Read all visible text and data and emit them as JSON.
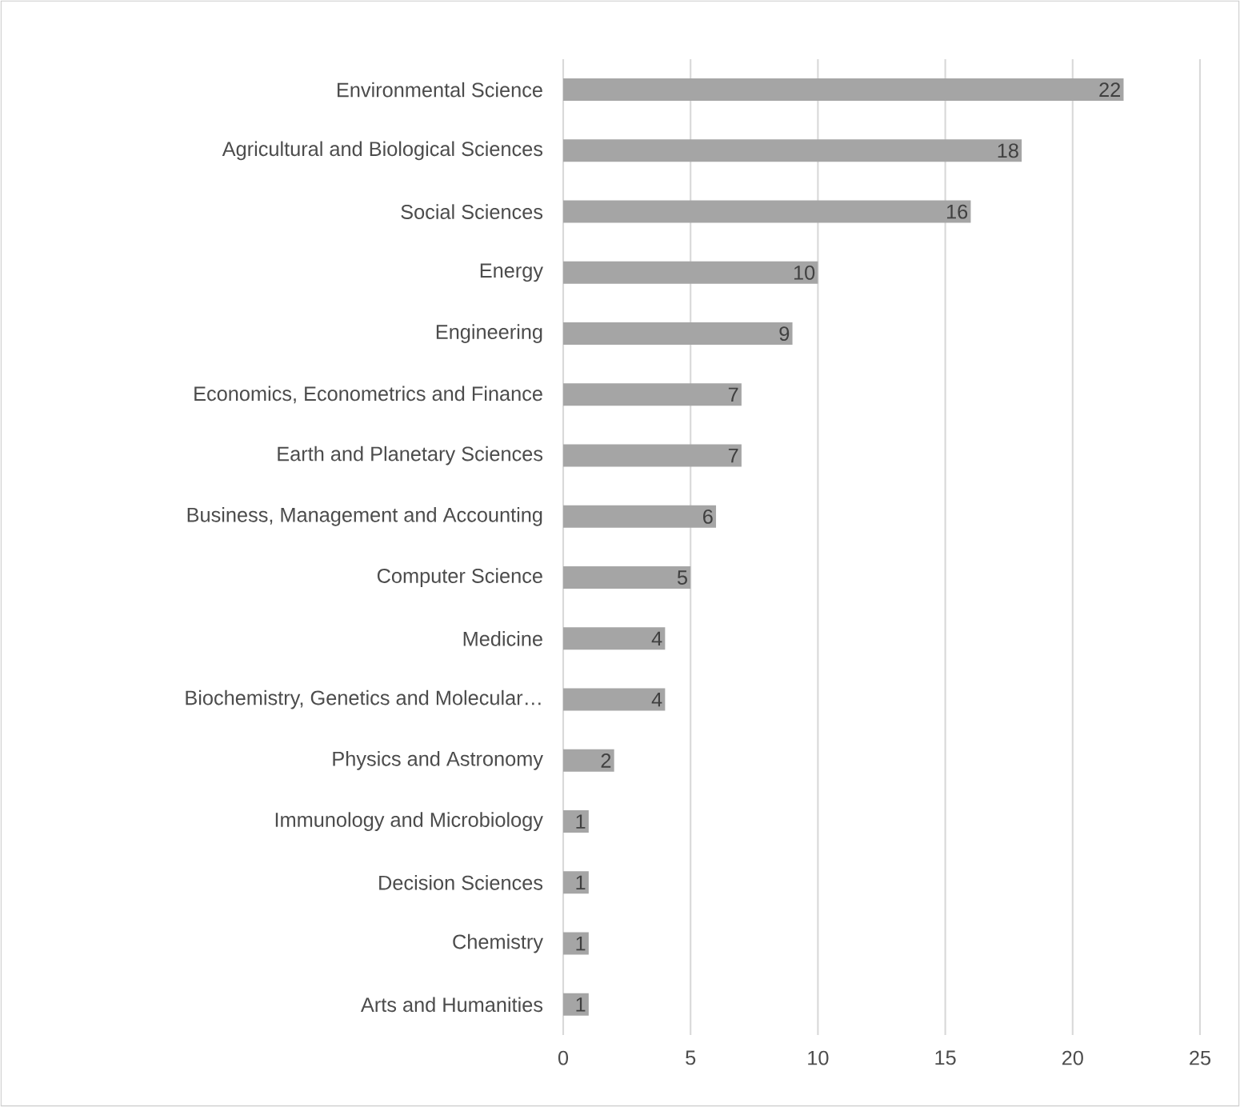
{
  "chart_data": {
    "type": "bar",
    "orientation": "horizontal",
    "categories": [
      "Environmental Science",
      "Agricultural and Biological Sciences",
      "Social Sciences",
      "Energy",
      "Engineering",
      "Economics, Econometrics and Finance",
      "Earth and Planetary Sciences",
      "Business, Management and Accounting",
      "Computer Science",
      "Medicine",
      "Biochemistry, Genetics and Molecular…",
      "Physics and Astronomy",
      "Immunology and Microbiology",
      "Decision Sciences",
      "Chemistry",
      "Arts and Humanities"
    ],
    "values": [
      22,
      18,
      16,
      10,
      9,
      7,
      7,
      6,
      5,
      4,
      4,
      2,
      1,
      1,
      1,
      1
    ],
    "color": "#a5a5a5",
    "xlim": [
      0,
      25
    ],
    "xticks": [
      0,
      5,
      10,
      15,
      20,
      25
    ],
    "grid": "x",
    "data_labels": true
  }
}
